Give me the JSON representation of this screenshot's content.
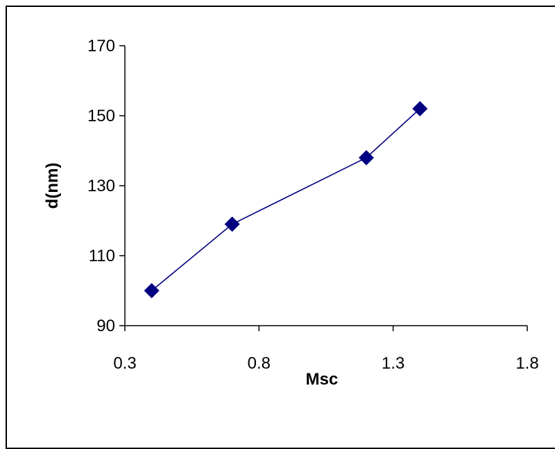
{
  "chart_data": {
    "type": "line",
    "xlabel": "Msc",
    "ylabel": "d(nm)",
    "xlim": [
      0.3,
      1.8
    ],
    "ylim": [
      90,
      170
    ],
    "xticks": [
      "0.3",
      "0.8",
      "1.3",
      "1.8"
    ],
    "yticks": [
      "90",
      "110",
      "130",
      "150",
      "170"
    ],
    "grid": false,
    "series": [
      {
        "x": [
          0.4,
          0.7,
          1.2,
          1.4
        ],
        "y": [
          100,
          119,
          138,
          152
        ],
        "color": "#000080",
        "marker": "diamond"
      }
    ]
  }
}
